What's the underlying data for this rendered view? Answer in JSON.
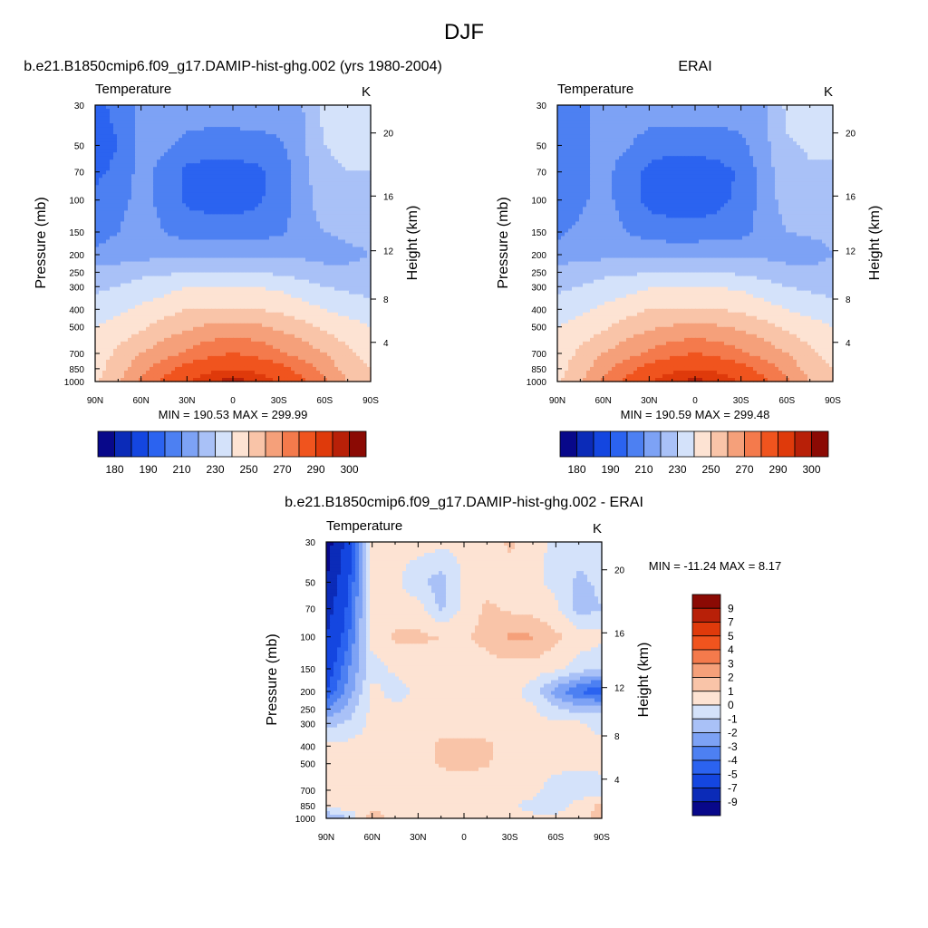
{
  "page": {
    "title": "DJF"
  },
  "chart_data": [
    {
      "type": "heatmap",
      "title": "b.e21.B1850cmip6.f09_g17.DAMIP-hist-ghg.002 (yrs 1980-2004)",
      "variable_label": "Temperature",
      "units_label": "K",
      "ylabel": "Pressure (mb)",
      "ylabel_right": "Height (km)",
      "x_ticks": [
        "90N",
        "60N",
        "30N",
        "0",
        "30S",
        "60S",
        "90S"
      ],
      "x_values": [
        90,
        60,
        30,
        0,
        -30,
        -60,
        -90
      ],
      "y_ticks": [
        30,
        50,
        70,
        100,
        150,
        200,
        250,
        300,
        400,
        500,
        700,
        850,
        1000
      ],
      "y_right_ticks": [
        4,
        8,
        12,
        16,
        20
      ],
      "min_max": "MIN = 190.53  MAX = 299.99",
      "colorbar_levels": [
        180,
        185,
        190,
        200,
        210,
        220,
        230,
        240,
        250,
        260,
        270,
        280,
        290,
        295,
        300
      ],
      "colorbar_labels": [
        "180",
        "190",
        "210",
        "230",
        "250",
        "270",
        "290",
        "300"
      ],
      "grid": {
        "lats": [
          90,
          75,
          60,
          45,
          30,
          15,
          0,
          -15,
          -30,
          -45,
          -60,
          -75,
          -90
        ],
        "pressures": [
          30,
          50,
          70,
          100,
          150,
          200,
          250,
          300,
          400,
          500,
          700,
          850,
          1000
        ],
        "values": [
          [
            198,
            202,
            214,
            218,
            218,
            218,
            218,
            218,
            218,
            219,
            234,
            236,
            236
          ],
          [
            196,
            200,
            214,
            212,
            206,
            204,
            204,
            205,
            208,
            218,
            230,
            232,
            232
          ],
          [
            198,
            202,
            214,
            206,
            198,
            196,
            196,
            198,
            202,
            216,
            228,
            230,
            230
          ],
          [
            202,
            206,
            214,
            206,
            198,
            196,
            195,
            198,
            204,
            215,
            226,
            228,
            228
          ],
          [
            206,
            210,
            216,
            210,
            206,
            205,
            205,
            206,
            208,
            214,
            220,
            222,
            222
          ],
          [
            212,
            214,
            216,
            218,
            218,
            218,
            218,
            218,
            218,
            218,
            216,
            218,
            220
          ],
          [
            224,
            226,
            228,
            228,
            230,
            230,
            230,
            230,
            228,
            226,
            224,
            222,
            222
          ],
          [
            228,
            230,
            233,
            236,
            240,
            240,
            240,
            240,
            238,
            234,
            230,
            228,
            226
          ],
          [
            234,
            238,
            242,
            246,
            250,
            250,
            250,
            250,
            248,
            244,
            240,
            236,
            234
          ],
          [
            240,
            244,
            248,
            254,
            258,
            262,
            262,
            262,
            258,
            254,
            248,
            244,
            240
          ],
          [
            244,
            252,
            260,
            266,
            272,
            278,
            280,
            278,
            272,
            266,
            260,
            252,
            246
          ],
          [
            246,
            256,
            266,
            276,
            284,
            288,
            290,
            288,
            284,
            276,
            266,
            256,
            250
          ],
          [
            248,
            258,
            272,
            282,
            290,
            294,
            298,
            294,
            290,
            282,
            272,
            260,
            252
          ]
        ]
      }
    },
    {
      "type": "heatmap",
      "title": "ERAI",
      "variable_label": "Temperature",
      "units_label": "K",
      "ylabel": "Pressure (mb)",
      "ylabel_right": "Height (km)",
      "x_ticks": [
        "90N",
        "60N",
        "30N",
        "0",
        "30S",
        "60S",
        "90S"
      ],
      "x_values": [
        90,
        60,
        30,
        0,
        -30,
        -60,
        -90
      ],
      "y_ticks": [
        30,
        50,
        70,
        100,
        150,
        200,
        250,
        300,
        400,
        500,
        700,
        850,
        1000
      ],
      "y_right_ticks": [
        4,
        8,
        12,
        16,
        20
      ],
      "min_max": "MIN = 190.59  MAX = 299.48",
      "colorbar_levels": [
        180,
        185,
        190,
        200,
        210,
        220,
        230,
        240,
        250,
        260,
        270,
        280,
        290,
        295,
        300
      ],
      "colorbar_labels": [
        "180",
        "190",
        "210",
        "230",
        "250",
        "270",
        "290",
        "300"
      ],
      "grid": {
        "lats": [
          90,
          75,
          60,
          45,
          30,
          15,
          0,
          -15,
          -30,
          -45,
          -60,
          -75,
          -90
        ],
        "pressures": [
          30,
          50,
          70,
          100,
          150,
          200,
          250,
          300,
          400,
          500,
          700,
          850,
          1000
        ],
        "values": [
          [
            204,
            206,
            214,
            218,
            217,
            217,
            217,
            217,
            217,
            218,
            232,
            235,
            235
          ],
          [
            202,
            206,
            214,
            211,
            205,
            203,
            203,
            204,
            207,
            217,
            229,
            231,
            231
          ],
          [
            202,
            206,
            214,
            205,
            197,
            195,
            195,
            197,
            201,
            215,
            227,
            229,
            229
          ],
          [
            204,
            208,
            214,
            205,
            197,
            195,
            194,
            197,
            203,
            214,
            225,
            227,
            227
          ],
          [
            208,
            212,
            216,
            210,
            205,
            204,
            204,
            205,
            207,
            213,
            220,
            221,
            221
          ],
          [
            214,
            216,
            217,
            218,
            218,
            218,
            218,
            218,
            218,
            218,
            216,
            217,
            220
          ],
          [
            224,
            226,
            228,
            228,
            230,
            230,
            230,
            230,
            228,
            226,
            224,
            222,
            222
          ],
          [
            228,
            230,
            233,
            236,
            239,
            240,
            240,
            240,
            238,
            234,
            230,
            228,
            226
          ],
          [
            234,
            238,
            242,
            246,
            250,
            250,
            250,
            250,
            248,
            244,
            240,
            236,
            234
          ],
          [
            240,
            244,
            248,
            254,
            258,
            261,
            262,
            261,
            258,
            254,
            248,
            244,
            240
          ],
          [
            244,
            252,
            260,
            266,
            272,
            278,
            280,
            278,
            272,
            266,
            260,
            252,
            246
          ],
          [
            246,
            256,
            266,
            276,
            284,
            288,
            290,
            288,
            284,
            276,
            266,
            256,
            250
          ],
          [
            248,
            258,
            272,
            282,
            290,
            294,
            297,
            294,
            290,
            282,
            272,
            260,
            252
          ]
        ]
      }
    },
    {
      "type": "heatmap",
      "title": "b.e21.B1850cmip6.f09_g17.DAMIP-hist-ghg.002 - ERAI",
      "variable_label": "Temperature",
      "units_label": "K",
      "ylabel": "Pressure (mb)",
      "ylabel_right": "Height (km)",
      "x_ticks": [
        "90N",
        "60N",
        "30N",
        "0",
        "30S",
        "60S",
        "90S"
      ],
      "x_values": [
        90,
        60,
        30,
        0,
        -30,
        -60,
        -90
      ],
      "y_ticks": [
        30,
        50,
        70,
        100,
        150,
        200,
        250,
        300,
        400,
        500,
        700,
        850,
        1000
      ],
      "y_right_ticks": [
        4,
        8,
        12,
        16,
        20
      ],
      "min_max": "MIN = -11.24  MAX =   8.17",
      "colorbar_levels": [
        -9,
        -7,
        -5,
        -4,
        -3,
        -2,
        -1,
        0,
        1,
        2,
        3,
        4,
        5,
        7,
        9
      ],
      "colorbar_labels": [
        "9",
        "7",
        "5",
        "4",
        "3",
        "2",
        "1",
        "0",
        "-1",
        "-2",
        "-3",
        "-4",
        "-5",
        "-7",
        "-9"
      ],
      "grid": {
        "lats": [
          90,
          75,
          60,
          45,
          30,
          15,
          0,
          -15,
          -30,
          -45,
          -60,
          -75,
          -90
        ],
        "pressures": [
          30,
          50,
          70,
          100,
          150,
          200,
          250,
          300,
          400,
          500,
          700,
          850,
          1000
        ],
        "values": [
          [
            -10,
            -6,
            0.5,
            0.3,
            0.5,
            0.3,
            0.2,
            0.4,
            1.2,
            0.4,
            -0.3,
            -0.6,
            -0.5
          ],
          [
            -9,
            -5,
            0.4,
            0.3,
            -0.8,
            -1.5,
            0.2,
            0.5,
            0.6,
            0.4,
            -0.4,
            -1.2,
            -0.8
          ],
          [
            -8,
            -4.5,
            0.3,
            0.4,
            0.5,
            -1.2,
            0.3,
            1.2,
            0.8,
            0.6,
            0.3,
            -1.5,
            -1.0
          ],
          [
            -7,
            -4,
            0.5,
            1.2,
            1.2,
            1.0,
            0.8,
            1.4,
            2.2,
            2.1,
            1.2,
            0.6,
            0.3
          ],
          [
            -6,
            -3,
            -0.5,
            0.2,
            0.4,
            0.5,
            0.3,
            0.5,
            0.5,
            0.5,
            0.3,
            -0.5,
            -1.0
          ],
          [
            -5,
            -2.5,
            0.4,
            -0.5,
            0.3,
            0.4,
            0.3,
            0.5,
            0.4,
            -0.5,
            -2.5,
            -4.0,
            -5.0
          ],
          [
            -3,
            -1.5,
            0.3,
            0.3,
            0.3,
            0.3,
            0.2,
            0.4,
            0.3,
            0.2,
            -0.8,
            -1.5,
            -1.2
          ],
          [
            -1.5,
            -0.8,
            0.3,
            0.4,
            0.4,
            0.5,
            0.3,
            0.4,
            0.3,
            0.2,
            0.3,
            0.2,
            -0.4
          ],
          [
            0.3,
            0.3,
            0.4,
            0.5,
            0.6,
            1.2,
            1.4,
            1.2,
            0.6,
            0.4,
            0.3,
            0.3,
            0.3
          ],
          [
            0.3,
            0.4,
            0.3,
            0.5,
            0.6,
            1.1,
            1.3,
            1.1,
            0.5,
            0.3,
            0.3,
            0.3,
            0.3
          ],
          [
            0.5,
            0.3,
            0.4,
            0.3,
            0.4,
            0.5,
            0.4,
            0.3,
            0.3,
            0.3,
            -0.5,
            -0.8,
            -0.5
          ],
          [
            0.8,
            0.5,
            0.3,
            0.2,
            0.3,
            0.3,
            0.2,
            0.3,
            0.2,
            -0.3,
            -0.6,
            0.5,
            1.2
          ],
          [
            -2.5,
            -1.0,
            2.0,
            0.5,
            0.4,
            0.3,
            0.3,
            0.3,
            0.2,
            0.2,
            0.3,
            0.6,
            1.5
          ]
        ]
      }
    }
  ]
}
